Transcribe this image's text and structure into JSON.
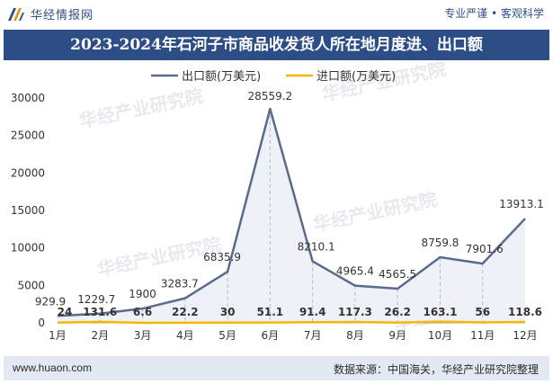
{
  "header": {
    "brand_name": "华经情报网",
    "tagline": "专业严谨 • 客观科学"
  },
  "title": "2023-2024年石河子市商品收发货人所在地月度进、出口额",
  "watermark": "华经产业研究院",
  "footer": {
    "website": "www.huaon.com",
    "source": "数据来源：中国海关，华经产业研究院整理"
  },
  "colors": {
    "title_bg": "#2c4d85",
    "export_line": "#5a6b8c",
    "import_line": "#f5b800",
    "area_fill": "#eef1f7",
    "footer_bg": "#e3e9f2"
  },
  "chart_data": {
    "type": "line",
    "categories": [
      "1月",
      "2月",
      "3月",
      "4月",
      "5月",
      "6月",
      "7月",
      "8月",
      "9月",
      "10月",
      "11月",
      "12月"
    ],
    "series": [
      {
        "name": "出口额(万美元)",
        "values": [
          929.9,
          1229.7,
          1900,
          3283.7,
          6835.9,
          28559.2,
          8210.1,
          4965.4,
          4565.5,
          8759.8,
          7901.6,
          13913.1
        ],
        "labels": [
          "929.9",
          "1229.7",
          "1900",
          "3283.7",
          "6835.9",
          "28559.2",
          "8210.1",
          "4965.4",
          "4565.5",
          "8759.8",
          "7901.6",
          "13913.1"
        ]
      },
      {
        "name": "进口额(万美元)",
        "values": [
          24,
          131.6,
          6.6,
          22.2,
          30,
          51.1,
          91.4,
          117.3,
          26.2,
          163.1,
          56,
          118.6
        ],
        "labels": [
          "24",
          "131.6",
          "6.6",
          "22.2",
          "30",
          "51.1",
          "91.4",
          "117.3",
          "26.2",
          "163.1",
          "56",
          "118.6"
        ]
      }
    ],
    "y_ticks": [
      "0",
      "5000",
      "10000",
      "15000",
      "20000",
      "25000",
      "30000"
    ],
    "ylim": [
      0,
      30000
    ],
    "legend_position": "top-center",
    "grid": false
  }
}
